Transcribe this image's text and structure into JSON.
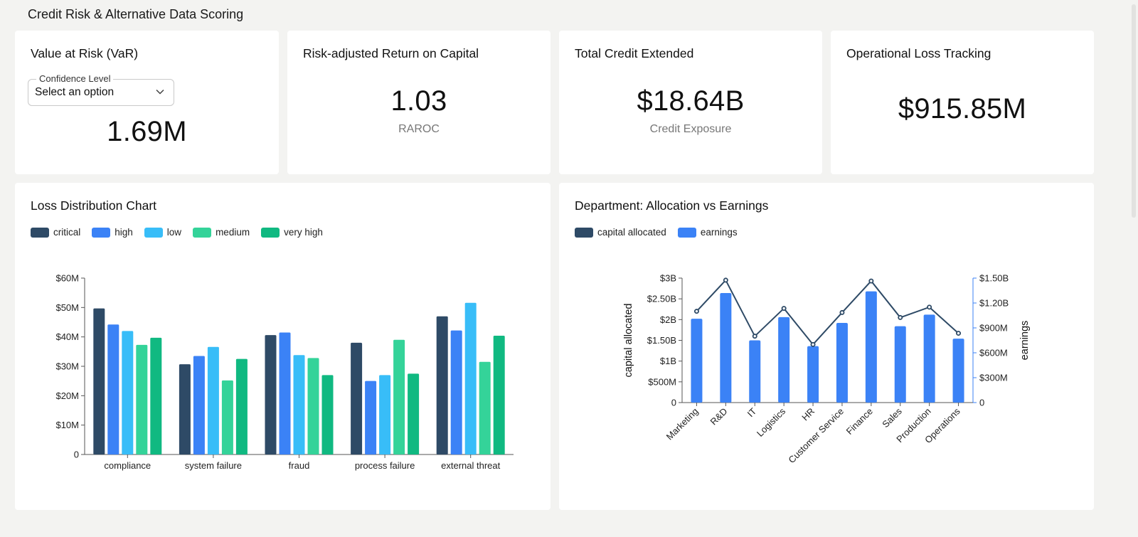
{
  "header": {
    "title": "Credit Risk & Alternative Data Scoring"
  },
  "kpis": {
    "var": {
      "title": "Value at Risk (VaR)",
      "select_label": "Confidence Level",
      "select_value": "Select an option",
      "value": "1.69M"
    },
    "raroc": {
      "title": "Risk-adjusted Return on Capital",
      "value": "1.03",
      "sub": "RAROC"
    },
    "credit": {
      "title": "Total Credit Extended",
      "value": "$18.64B",
      "sub": "Credit Exposure"
    },
    "oploss": {
      "title": "Operational Loss Tracking",
      "value": "$915.85M"
    }
  },
  "loss_chart": {
    "title": "Loss Distribution Chart"
  },
  "dept_chart": {
    "title": "Department: Allocation vs Earnings"
  },
  "chart_data": [
    {
      "type": "bar",
      "title": "Loss Distribution Chart",
      "categories": [
        "compliance",
        "system failure",
        "fraud",
        "process failure",
        "external threat"
      ],
      "series": [
        {
          "name": "critical",
          "color": "#2e4a66",
          "values": [
            49.7,
            30.7,
            40.6,
            38.0,
            47.0
          ]
        },
        {
          "name": "high",
          "color": "#3b82f6",
          "values": [
            44.2,
            33.5,
            41.5,
            25.0,
            42.2
          ]
        },
        {
          "name": "low",
          "color": "#38bdf8",
          "values": [
            42.0,
            36.6,
            33.8,
            27.0,
            51.6
          ]
        },
        {
          "name": "medium",
          "color": "#34d399",
          "values": [
            37.3,
            25.2,
            32.8,
            39.0,
            31.5
          ]
        },
        {
          "name": "very high",
          "color": "#10b981",
          "values": [
            39.7,
            32.5,
            27.0,
            27.5,
            40.4
          ]
        }
      ],
      "ylim": [
        0,
        60
      ],
      "yticks": [
        "0",
        "$10M",
        "$20M",
        "$30M",
        "$40M",
        "$50M",
        "$60M"
      ],
      "legend": "top-left"
    },
    {
      "type": "bar",
      "title": "Department: Allocation vs Earnings",
      "categories": [
        "Marketing",
        "R&D",
        "IT",
        "Logistics",
        "HR",
        "Customer Service",
        "Finance",
        "Sales",
        "Production",
        "Operations"
      ],
      "series": [
        {
          "name": "capital allocated",
          "chart": "line",
          "color": "#2e4a66",
          "axis": "left",
          "values": [
            2.2,
            2.95,
            1.6,
            2.27,
            1.4,
            2.17,
            2.93,
            2.05,
            2.3,
            1.67
          ]
        },
        {
          "name": "earnings",
          "chart": "bar",
          "color": "#3b82f6",
          "axis": "right",
          "values": [
            1.01,
            1.32,
            0.75,
            1.03,
            0.68,
            0.96,
            1.34,
            0.92,
            1.06,
            0.77
          ]
        }
      ],
      "ylabel": "capital allocated",
      "ylabel_right": "earnings",
      "ylim": [
        0,
        3
      ],
      "ylim_right": [
        0,
        1.5
      ],
      "yticks": [
        "0",
        "$500M",
        "$1B",
        "$1.50B",
        "$2B",
        "$2.50B",
        "$3B"
      ],
      "yticks_right": [
        "0",
        "$300M",
        "$600M",
        "$900M",
        "$1.20B",
        "$1.50B"
      ],
      "legend": "top-left"
    }
  ]
}
